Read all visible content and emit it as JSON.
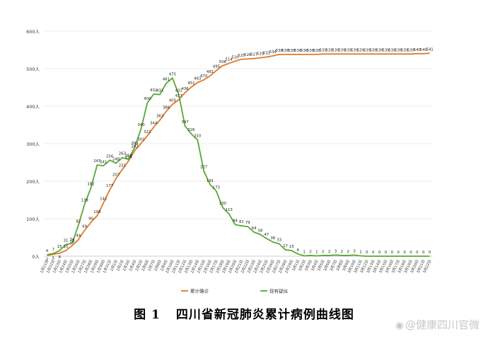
{
  "caption": {
    "figure_no": "图 1",
    "text": "四川省新冠肺炎累计病例曲线图"
  },
  "watermark": "@健康四川官微",
  "colors": {
    "confirmed": "#e07a2a",
    "suspected": "#59a833",
    "axis": "#bfbfbf",
    "grid": "#d9d9d9",
    "text": "#333333"
  },
  "chart_data": {
    "type": "line",
    "ylim": [
      0,
      600
    ],
    "yticks": [
      "0人",
      "100人",
      "200人",
      "300人",
      "400人",
      "500人",
      "600人"
    ],
    "grid": "horizontal",
    "legend_position": "bottom",
    "x": [
      "1月21日",
      "1月22日",
      "1月23日",
      "1月24日",
      "1月25日",
      "1月26日",
      "1月27日",
      "1月28日",
      "1月29日",
      "1月30日",
      "1月31日",
      "2月1日",
      "2月2日",
      "2月3日",
      "2月4日",
      "2月5日",
      "2月6日",
      "2月7日",
      "2月8日",
      "2月9日",
      "2月10日",
      "2月11日",
      "2月12日",
      "2月13日",
      "2月14日",
      "2月15日",
      "2月16日",
      "2月17日",
      "2月18日",
      "2月19日",
      "2月20日",
      "2月21日",
      "2月22日",
      "2月23日",
      "2月24日",
      "2月25日",
      "2月26日",
      "2月27日",
      "2月28日",
      "2月29日",
      "3月1日",
      "3月2日",
      "3月3日",
      "3月4日",
      "3月5日",
      "3月6日",
      "3月7日",
      "3月8日",
      "3月9日",
      "3月10日",
      "3月11日",
      "3月12日",
      "3月13日",
      "3月14日",
      "3月15日",
      "3月16日",
      "3月17日",
      "3月18日",
      "3月19日",
      "3月20日",
      "3月21日",
      "3月22日"
    ],
    "series": [
      {
        "name": "累计确诊",
        "values": [
          2,
          5,
          8,
          15,
          28,
          44,
          69,
          90,
          108,
          142,
          177,
          207,
          231,
          254,
          282,
          301,
          321,
          344,
          363,
          386,
          405,
          417,
          436,
          451,
          463,
          470,
          481,
          495,
          508,
          514,
          520,
          525,
          526,
          527,
          529,
          531,
          534,
          538,
          538,
          538,
          538,
          538,
          538,
          538,
          539,
          539,
          539,
          539,
          539,
          539,
          539,
          539,
          539,
          539,
          539,
          539,
          539,
          539,
          539,
          540,
          540,
          541
        ],
        "labels": [
          "2",
          "5",
          "8",
          "15",
          "28",
          "44",
          "69",
          "90",
          "108",
          "142",
          "177",
          "207",
          "231",
          "254",
          "282",
          "301",
          "321",
          "344",
          "363",
          "386",
          "405",
          "417",
          "436",
          "451",
          "463",
          "470",
          "481",
          "495",
          "508",
          "514",
          "520",
          "525",
          "526",
          "527",
          "529",
          "531",
          "534",
          "538",
          "538",
          "538",
          "538",
          "538",
          "538",
          "538",
          "539",
          "539",
          "539",
          "539",
          "539",
          "539",
          "539",
          "539",
          "539",
          "539",
          "539",
          "539",
          "539",
          "539",
          "539",
          "540",
          "540",
          "541"
        ]
      },
      {
        "name": "现有疑似",
        "values": [
          4,
          7,
          15,
          31,
          34,
          82,
          139,
          182,
          243,
          241,
          256,
          248,
          263,
          258,
          291,
          340,
          409,
          432,
          431,
          461,
          475,
          431,
          347,
          326,
          310,
          227,
          191,
          173,
          130,
          113,
          84,
          81,
          79,
          64,
          58,
          47,
          38,
          33,
          17,
          15,
          6,
          1,
          2,
          1,
          2,
          2,
          3,
          2,
          2,
          3,
          1,
          0,
          0,
          0,
          0,
          0,
          0,
          0,
          0,
          0,
          0,
          0
        ],
        "labels": [
          "4",
          "7",
          "15",
          "31",
          "34",
          "82",
          "139",
          "182",
          "243",
          "241",
          "256",
          "248",
          "263",
          "258",
          "291",
          "340",
          "409",
          "432",
          "431",
          "461",
          "475",
          "431",
          "347",
          "326",
          "310",
          "227",
          "191",
          "173",
          "130",
          "113",
          "84",
          "81",
          "79",
          "64",
          "58",
          "47",
          "38",
          "33",
          "17",
          "15",
          "6",
          "1",
          "2",
          "1",
          "2",
          "2",
          "3",
          "2",
          "2",
          "3",
          "1",
          "0",
          "0",
          "0",
          "0",
          "0",
          "0",
          "0",
          "0",
          "0",
          "0",
          "0"
        ]
      }
    ]
  }
}
